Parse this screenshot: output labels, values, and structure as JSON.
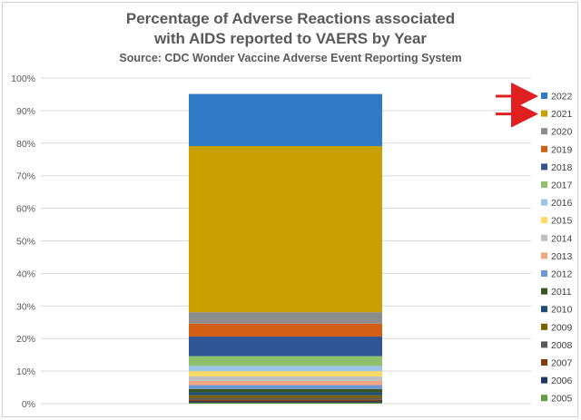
{
  "chart_data": {
    "type": "bar",
    "stacked": true,
    "title": "Percentage of Adverse Reactions associated\nwith AIDS reported to VAERS by Year",
    "subtitle": "Source: CDC Wonder Vaccine Adverse Event Reporting System",
    "ylim": [
      0,
      100
    ],
    "y_ticks": [
      "0%",
      "10%",
      "20%",
      "30%",
      "40%",
      "50%",
      "60%",
      "70%",
      "80%",
      "90%",
      "100%"
    ],
    "grid": true,
    "legend_position": "right",
    "series": [
      {
        "name": "2005",
        "value": 0.3,
        "color": "#5e9e3c"
      },
      {
        "name": "2006",
        "value": 0.4,
        "color": "#1f3864"
      },
      {
        "name": "2007",
        "value": 0.5,
        "color": "#843c0c"
      },
      {
        "name": "2008",
        "value": 0.6,
        "color": "#595959"
      },
      {
        "name": "2009",
        "value": 0.8,
        "color": "#7f6000"
      },
      {
        "name": "2010",
        "value": 0.9,
        "color": "#1f4e79"
      },
      {
        "name": "2011",
        "value": 1.0,
        "color": "#375623"
      },
      {
        "name": "2012",
        "value": 1.2,
        "color": "#6f97d3"
      },
      {
        "name": "2013",
        "value": 1.3,
        "color": "#f4a582"
      },
      {
        "name": "2014",
        "value": 1.4,
        "color": "#bfbfbf"
      },
      {
        "name": "2015",
        "value": 1.6,
        "color": "#ffd966"
      },
      {
        "name": "2016",
        "value": 1.6,
        "color": "#9dc3e6"
      },
      {
        "name": "2017",
        "value": 3.0,
        "color": "#8fc16d"
      },
      {
        "name": "2018",
        "value": 6.0,
        "color": "#2f5597"
      },
      {
        "name": "2019",
        "value": 4.0,
        "color": "#d35f14"
      },
      {
        "name": "2020",
        "value": 3.5,
        "color": "#8c8c8c"
      },
      {
        "name": "2021",
        "value": 51.0,
        "color": "#c9a000"
      },
      {
        "name": "2022",
        "value": 16.0,
        "color": "#2f7bc8"
      }
    ],
    "annotations": [
      {
        "type": "arrow",
        "points_to": "2022",
        "color": "#e02020"
      },
      {
        "type": "arrow",
        "points_to": "2021",
        "color": "#e02020"
      }
    ]
  }
}
